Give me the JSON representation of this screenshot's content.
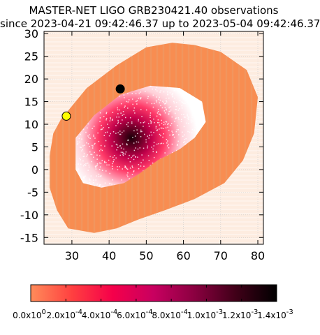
{
  "chart_data": {
    "type": "heatmap",
    "title": "MASTER-NET LIGO GRB230421.40 observations",
    "subtitle": "since 2023-04-21 09:42:46.37 up to 2023-05-04 09:42:46.37",
    "xlabel": "",
    "ylabel": "",
    "xlim": [
      22.5,
      81.5
    ],
    "ylim": [
      -16.5,
      30.5
    ],
    "x_ticks": [
      "30",
      "40",
      "50",
      "60",
      "70",
      "80"
    ],
    "x_tick_values": [
      30,
      40,
      50,
      60,
      70,
      80
    ],
    "y_ticks": [
      "30",
      "25",
      "20",
      "15",
      "10",
      "5",
      "0",
      "-5",
      "-10",
      "-15"
    ],
    "y_tick_values": [
      30,
      25,
      20,
      15,
      10,
      5,
      0,
      -5,
      -10,
      -15
    ],
    "grid": true,
    "region_outer": {
      "description_color": "#f88d51",
      "boundary": [
        [
          27,
          11
        ],
        [
          34,
          18
        ],
        [
          42,
          23
        ],
        [
          50,
          27
        ],
        [
          57,
          28
        ],
        [
          63,
          27.5
        ],
        [
          70,
          26
        ],
        [
          77,
          22
        ],
        [
          80,
          16
        ],
        [
          79,
          8
        ],
        [
          76,
          2
        ],
        [
          71,
          -3
        ],
        [
          63,
          -6.5
        ],
        [
          55,
          -9
        ],
        [
          48,
          -11
        ],
        [
          42,
          -13
        ],
        [
          36,
          -14
        ],
        [
          29,
          -13
        ],
        [
          26,
          -9
        ],
        [
          24,
          -4
        ],
        [
          24,
          3
        ],
        [
          25,
          8
        ]
      ]
    },
    "region_inner": {
      "boundary": [
        [
          31,
          7
        ],
        [
          36,
          12
        ],
        [
          43,
          16.5
        ],
        [
          51,
          18.5
        ],
        [
          59,
          18
        ],
        [
          65,
          15
        ],
        [
          66,
          10.5
        ],
        [
          63,
          7
        ],
        [
          59,
          4.5
        ],
        [
          53,
          2
        ],
        [
          48,
          -1
        ],
        [
          44,
          -3
        ],
        [
          38,
          -4
        ],
        [
          33,
          -3
        ],
        [
          31,
          0
        ]
      ]
    },
    "peak": {
      "x": 46,
      "y": 7,
      "value": 0.0014
    },
    "markers": [
      {
        "x": 43,
        "y": 17.8,
        "color": "#000000"
      },
      {
        "x": 28.5,
        "y": 11.8,
        "color": "#ffff00"
      }
    ],
    "colorbar": {
      "min": 0.0,
      "max": 0.0014,
      "colors": [
        "#ff8c5a",
        "#ff4040",
        "#f5004a",
        "#c80060",
        "#8a0040",
        "#400018",
        "#000000"
      ],
      "tick_labels": [
        "0.0x10",
        "2.0x10",
        "4.0x10",
        "6.0x10",
        "8.0x10",
        "1.0x10",
        "1.2x10",
        "1.4x10"
      ],
      "tick_exponents": [
        "0",
        "-4",
        "-4",
        "-4",
        "-4",
        "-3",
        "-3",
        "-3"
      ]
    },
    "colors": {
      "background": "#fdece0",
      "outer_fill": "#f88d51",
      "grid": "#c9c9c9"
    }
  }
}
